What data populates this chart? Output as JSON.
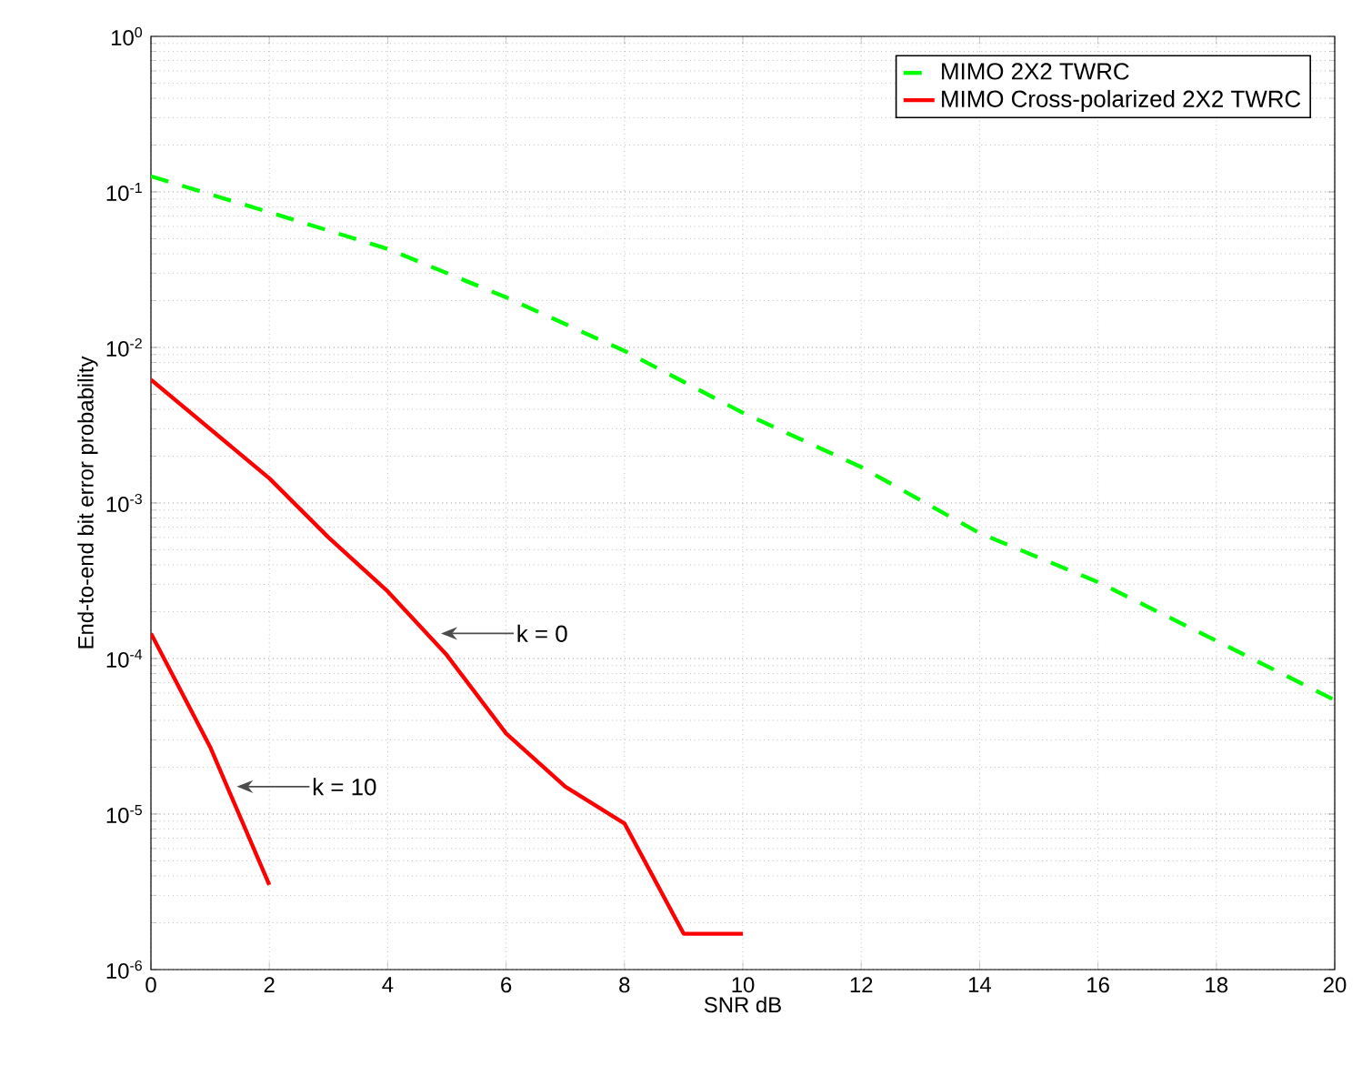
{
  "chart_data": {
    "type": "line",
    "xlabel": "SNR dB",
    "ylabel": "End-to-end bit error probability",
    "xlim": [
      0,
      20
    ],
    "xticks": [
      0,
      2,
      4,
      6,
      8,
      10,
      12,
      14,
      16,
      18,
      20
    ],
    "ylim": [
      1e-06,
      1
    ],
    "yticks": [
      {
        "value": 1e-06,
        "label": "10$^{-6}$"
      },
      {
        "value": 1e-05,
        "label": "10$^{-5}$"
      },
      {
        "value": 0.0001,
        "label": "10$^{-4}$"
      },
      {
        "value": 0.001,
        "label": "10$^{-3}$"
      },
      {
        "value": 0.01,
        "label": "10$^{-2}$"
      },
      {
        "value": 0.1,
        "label": "10$^{-1}$"
      },
      {
        "value": 1,
        "label": "10$^{0}$"
      }
    ],
    "log": "y",
    "grid": true,
    "legend": "top right",
    "marker": "none",
    "series": [
      {
        "name": "MIMO 2X2 TWRC",
        "color": "#00ff00",
        "line_style": "dashed",
        "x": [
          0,
          2,
          4,
          6,
          8,
          10,
          12,
          14,
          16,
          18,
          20
        ],
        "values": [
          0.126,
          0.074,
          0.043,
          0.021,
          0.0095,
          0.0038,
          0.0017,
          0.00064,
          0.00031,
          0.00013,
          5.4e-05
        ]
      },
      {
        "name": "MIMO Cross-polarized 2X2 TWRC",
        "color": "#ff0000",
        "line_style": "solid",
        "x": [
          0,
          2,
          3,
          4,
          5,
          6,
          7,
          8,
          9,
          10
        ],
        "values": [
          0.0062,
          0.00144,
          0.0006,
          0.00027,
          0.000105,
          3.3e-05,
          1.5e-05,
          8.7e-06,
          1.7e-06,
          1.7e-06
        ]
      },
      {
        "color": "#ff0000",
        "line_style": "solid",
        "x": [
          0,
          1,
          2
        ],
        "values": [
          0.000145,
          2.7e-05,
          3.5e-06
        ]
      }
    ],
    "annotations": [
      {
        "text": "k = 0",
        "x": 4.9,
        "y": 0.000145
      },
      {
        "text": "k = 10",
        "x": 1.45,
        "y": 1.5e-05
      }
    ]
  }
}
